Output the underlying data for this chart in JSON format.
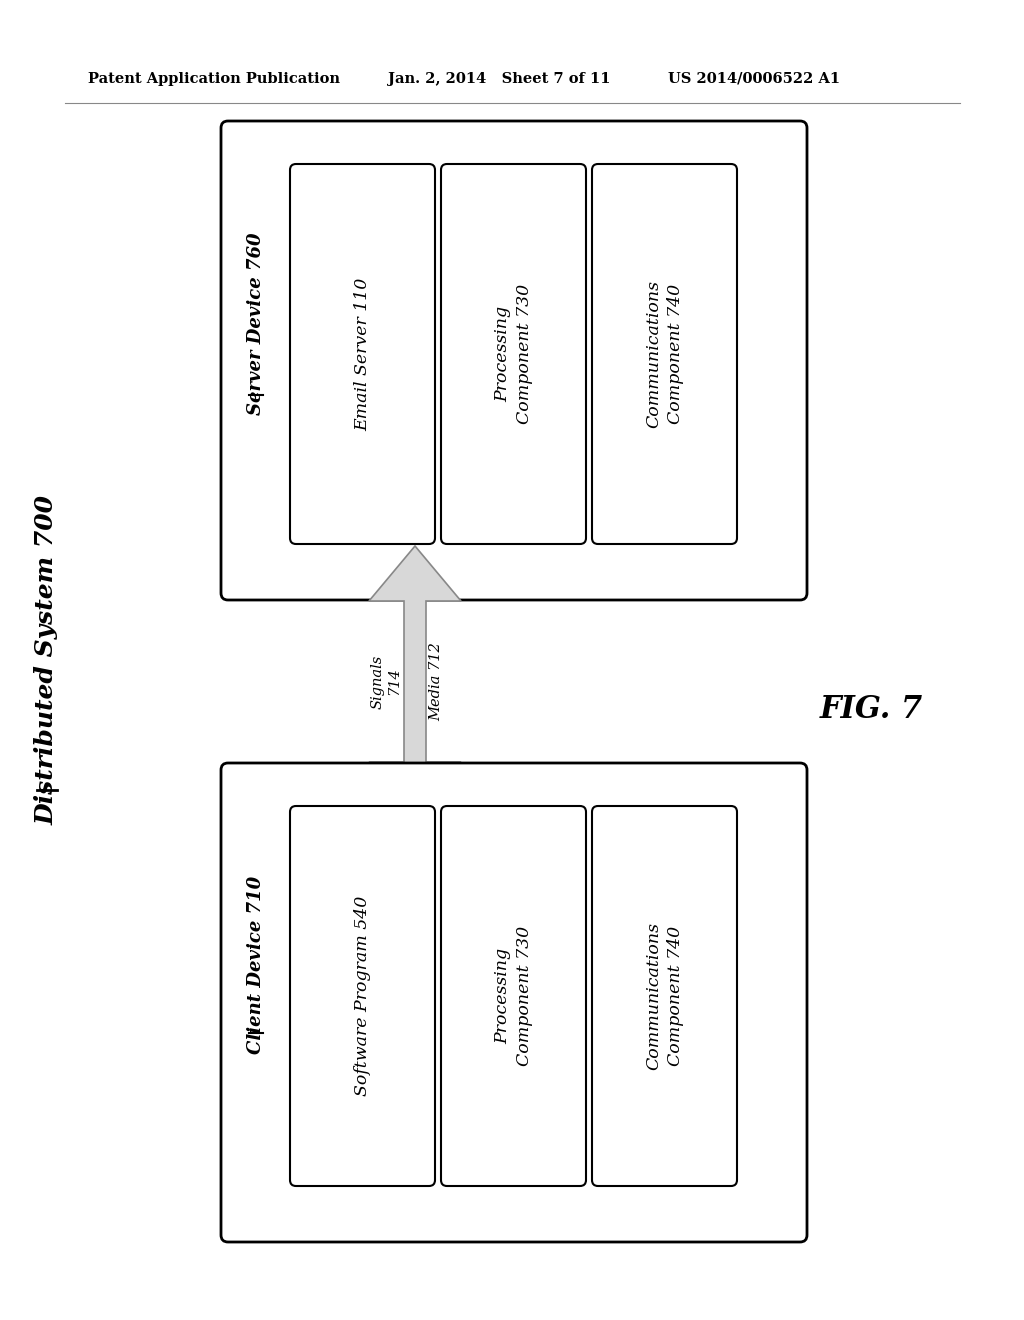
{
  "bg_color": "#ffffff",
  "header_left": "Patent Application Publication",
  "header_center": "Jan. 2, 2014   Sheet 7 of 11",
  "header_right": "US 2014/0006522 A1",
  "fig_label": "FIG. 7",
  "distributed_system_label": "Distributed System 700",
  "server_device_label": "Server Device 760",
  "client_device_label": "Client Device 710",
  "server_boxes": [
    "Email Server 110",
    "Processing\nComponent 730",
    "Communications\nComponent 740"
  ],
  "client_boxes": [
    "Software Program 540",
    "Processing\nComponent 730",
    "Communications\nComponent 740"
  ],
  "arrow_label_left": "Signals\n714",
  "arrow_label_right": "Media 712",
  "outer_box_color": "#000000",
  "inner_box_color": "#000000",
  "text_color": "#000000",
  "arrow_fill_color": "#d8d8d8",
  "arrow_edge_color": "#888888",
  "sep_line_color": "#888888"
}
